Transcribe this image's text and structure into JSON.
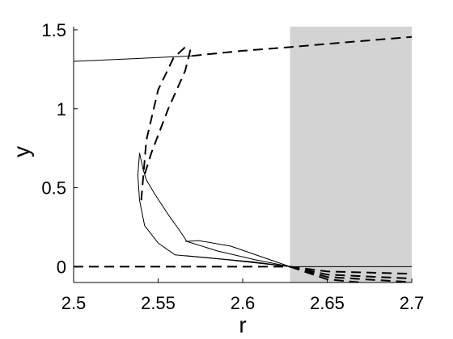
{
  "chart_data": {
    "type": "line",
    "title": "",
    "xlabel": "r",
    "ylabel": "y",
    "xlim": [
      2.5,
      2.7
    ],
    "ylim": [
      -0.1,
      1.52
    ],
    "grid": false,
    "x_ticks": [
      2.5,
      2.55,
      2.6,
      2.65,
      2.7
    ],
    "x_tick_labels": [
      "2.5",
      "2.55",
      "2.6",
      "2.65",
      "2.7"
    ],
    "y_ticks": [
      0,
      0.5,
      1,
      1.5
    ],
    "y_tick_labels": [
      "0",
      "0.5",
      "1",
      "1.5"
    ],
    "shaded_region": {
      "x": [
        2.628,
        2.7
      ],
      "color": "#d3d3d3"
    },
    "series": [
      {
        "style": "solid",
        "points": [
          [
            2.5,
            1.3
          ],
          [
            2.535,
            1.317
          ],
          [
            2.57,
            1.335
          ]
        ]
      },
      {
        "style": "dashed",
        "points": [
          [
            2.57,
            1.335
          ],
          [
            2.6,
            1.367
          ],
          [
            2.628,
            1.39
          ],
          [
            2.66,
            1.42
          ],
          [
            2.7,
            1.455
          ]
        ]
      },
      {
        "style": "dashed",
        "points": [
          [
            2.5,
            0.0
          ],
          [
            2.55,
            0.0
          ],
          [
            2.6,
            0.0
          ],
          [
            2.628,
            0.0
          ]
        ]
      },
      {
        "style": "solid",
        "points": [
          [
            2.628,
            0.0
          ],
          [
            2.665,
            0.0
          ],
          [
            2.7,
            0.0
          ]
        ]
      },
      {
        "style": "dashed",
        "points": [
          [
            2.54,
            0.42
          ],
          [
            2.543,
            0.8
          ],
          [
            2.55,
            1.12
          ],
          [
            2.559,
            1.32
          ],
          [
            2.566,
            1.39
          ],
          [
            2.569,
            1.37
          ],
          [
            2.566,
            1.24
          ],
          [
            2.556,
            1.0
          ],
          [
            2.546,
            0.72
          ],
          [
            2.541,
            0.55
          ]
        ]
      },
      {
        "style": "solid",
        "points": [
          [
            2.539,
            0.72
          ],
          [
            2.541,
            0.62
          ],
          [
            2.543,
            0.55
          ],
          [
            2.548,
            0.46
          ],
          [
            2.556,
            0.33
          ],
          [
            2.562,
            0.24
          ],
          [
            2.567,
            0.16
          ],
          [
            2.585,
            0.1
          ],
          [
            2.607,
            0.045
          ],
          [
            2.628,
            0.0
          ]
        ]
      },
      {
        "style": "solid",
        "points": [
          [
            2.539,
            0.72
          ],
          [
            2.538,
            0.58
          ],
          [
            2.539,
            0.42
          ],
          [
            2.542,
            0.26
          ],
          [
            2.55,
            0.15
          ],
          [
            2.56,
            0.075
          ],
          [
            2.59,
            0.045
          ],
          [
            2.628,
            0.0
          ]
        ]
      },
      {
        "style": "solid",
        "points": [
          [
            2.566,
            0.16
          ],
          [
            2.574,
            0.165
          ],
          [
            2.593,
            0.13
          ],
          [
            2.628,
            0.0
          ]
        ]
      },
      {
        "style": "solid",
        "points": [
          [
            2.566,
            0.07
          ],
          [
            2.586,
            0.05
          ],
          [
            2.607,
            0.03
          ],
          [
            2.628,
            0.0
          ]
        ]
      },
      {
        "style": "dashed",
        "points": [
          [
            2.628,
            0.0
          ],
          [
            2.65,
            -0.03
          ],
          [
            2.7,
            -0.045
          ]
        ]
      },
      {
        "style": "dashed",
        "points": [
          [
            2.628,
            0.0
          ],
          [
            2.65,
            -0.05
          ],
          [
            2.7,
            -0.075
          ]
        ]
      },
      {
        "style": "dashed",
        "points": [
          [
            2.628,
            0.0
          ],
          [
            2.65,
            -0.065
          ],
          [
            2.7,
            -0.098
          ]
        ]
      },
      {
        "style": "dashed",
        "points": [
          [
            2.628,
            0.0
          ],
          [
            2.65,
            -0.08
          ],
          [
            2.67,
            -0.1
          ]
        ]
      }
    ]
  }
}
